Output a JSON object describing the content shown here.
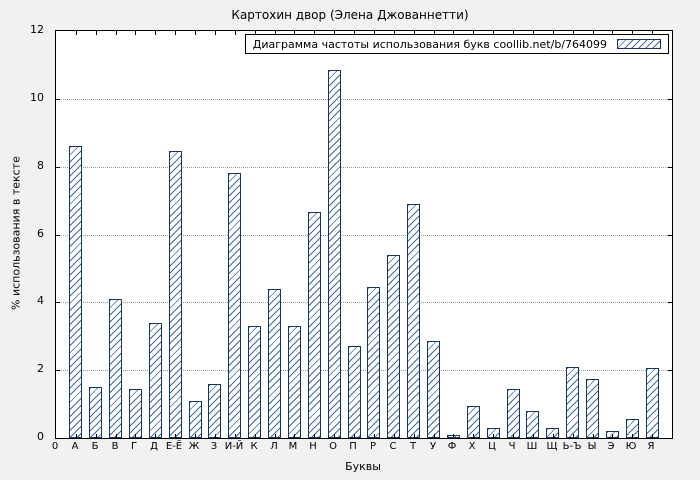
{
  "chart_data": {
    "type": "bar",
    "title": "Картохин двор (Элена Джованнетти)",
    "legend": "Диаграмма частоты использования букв coollib.net/b/764099",
    "xlabel": "Буквы",
    "ylabel": "% использования в тексте",
    "ylim": [
      0,
      12
    ],
    "yticks": [
      0,
      2,
      4,
      6,
      8,
      10,
      12
    ],
    "origin_label": "0",
    "grid": "horizontal-dotted",
    "legend_position": "top-right",
    "categories": [
      "А",
      "Б",
      "В",
      "Г",
      "Д",
      "Е-Ё",
      "Ж",
      "З",
      "И-Й",
      "К",
      "Л",
      "М",
      "Н",
      "О",
      "П",
      "Р",
      "С",
      "Т",
      "У",
      "Ф",
      "Х",
      "Ц",
      "Ч",
      "Ш",
      "Щ",
      "Ь-Ъ",
      "Ы",
      "Э",
      "Ю",
      "Я"
    ],
    "values": [
      8.6,
      1.5,
      4.1,
      1.45,
      3.4,
      8.45,
      1.1,
      1.6,
      7.8,
      3.3,
      4.4,
      3.3,
      6.65,
      10.85,
      2.7,
      4.45,
      5.4,
      6.9,
      2.85,
      0.1,
      0.95,
      0.3,
      1.45,
      0.8,
      0.3,
      2.1,
      1.75,
      0.2,
      0.55,
      2.05
    ],
    "colors": {
      "bar_outline": "#16355f",
      "bar_hatch": "#44689e",
      "plot_bg": "#ffffff",
      "page_bg": "#f1f1f1",
      "grid_line": "#9a9a9a"
    }
  }
}
